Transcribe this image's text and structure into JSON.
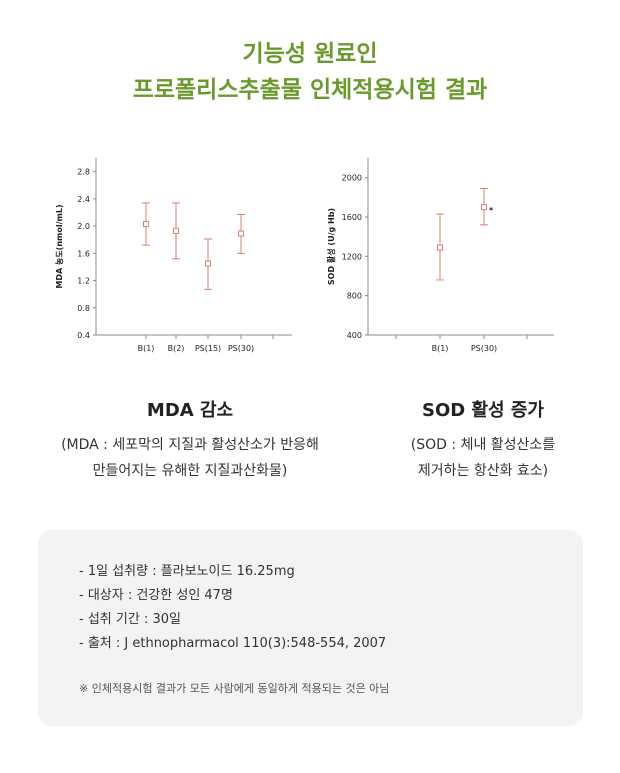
{
  "header": {
    "line1": "기능성 원료인",
    "line2": "프로폴리스추출물 인체적용시험 결과"
  },
  "chart_data": [
    {
      "type": "scatter",
      "ylabel": "MDA 농도(nmol/mL)",
      "ylim": [
        0.4,
        3.0
      ],
      "yticks": [
        0.4,
        0.8,
        1.2,
        1.6,
        2.0,
        2.4,
        2.8
      ],
      "ytick_labels": [
        "0.4",
        "0.8",
        "1.2",
        "1.6",
        "2.0",
        "2.4",
        "2.8"
      ],
      "categories": [
        "B(1)",
        "B(2)",
        "PS(15)",
        "PS(30)"
      ],
      "values": [
        2.03,
        1.93,
        1.45,
        1.89
      ],
      "error": [
        [
          1.72,
          2.34
        ],
        [
          1.52,
          2.34
        ],
        [
          1.07,
          1.81
        ],
        [
          1.6,
          2.17
        ]
      ],
      "marker_color": "#d9826f",
      "grid": false
    },
    {
      "type": "scatter",
      "ylabel": "SOD 활성 (U/g Hb)",
      "ylim": [
        400,
        2200
      ],
      "yticks": [
        400,
        800,
        1200,
        1600,
        2000
      ],
      "ytick_labels": [
        "400",
        "800",
        "1200",
        "1600",
        "2000"
      ],
      "categories": [
        "B(1)",
        "PS(30)"
      ],
      "values": [
        1290,
        1700
      ],
      "error": [
        [
          960,
          1630
        ],
        [
          1520,
          1890
        ]
      ],
      "annotations": [
        {
          "category": "PS(30)",
          "text": "*"
        }
      ],
      "marker_color": "#d9826f",
      "grid": false
    }
  ],
  "captions": {
    "left_title": "MDA 감소",
    "left_desc1": "(MDA : 세포막의 지질과 활성산소가 반응해",
    "left_desc2": "만들어지는 유해한 지질과산화물)",
    "right_title": "SOD 활성 증가",
    "right_desc1": "(SOD : 체내 활성산소를",
    "right_desc2": "제거하는 항산화 효소)"
  },
  "info": {
    "items": [
      "- 1일 섭취량 : 플라보노이드 16.25mg",
      "- 대상자 : 건강한 성인 47명",
      "- 섭취 기간 : 30일",
      "- 출처 : J ethnopharmacol 110(3):548-554, 2007"
    ],
    "note": "※ 인체적용시험 결과가 모든 사람에게 동일하게 적용되는 것은 아님"
  }
}
